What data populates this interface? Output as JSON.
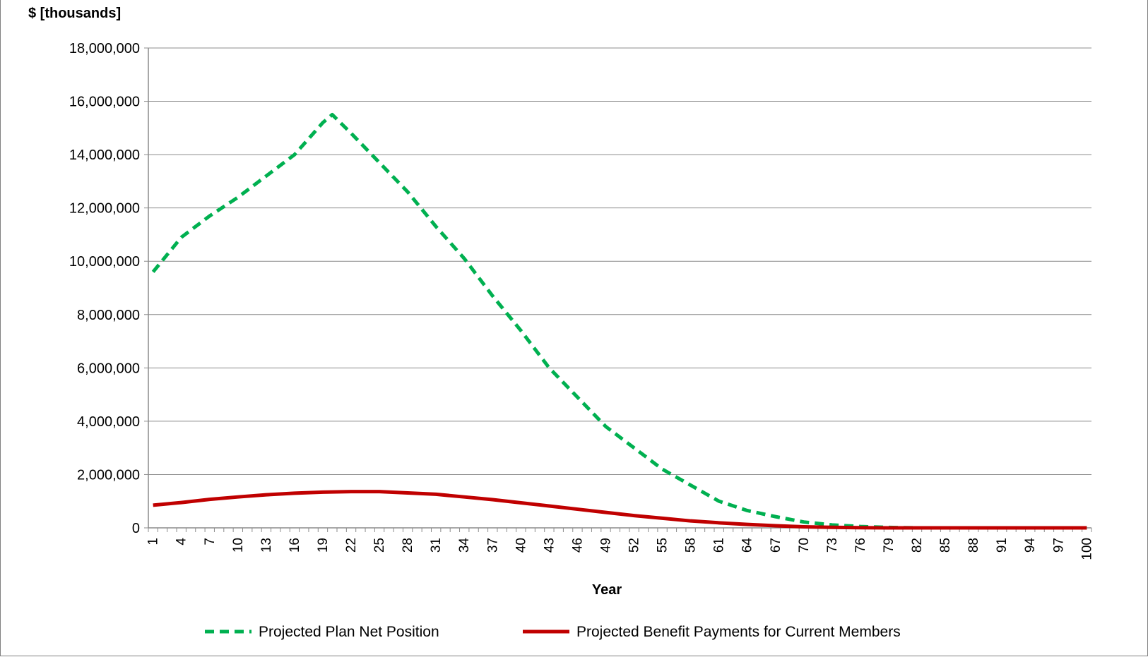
{
  "chart_data": {
    "type": "line",
    "title": "",
    "ylabel": "$ [thousands]",
    "xlabel": "Year",
    "ylim": [
      0,
      18000000
    ],
    "xlim": [
      1,
      100
    ],
    "yticks": [
      0,
      2000000,
      4000000,
      6000000,
      8000000,
      10000000,
      12000000,
      14000000,
      16000000,
      18000000
    ],
    "ytick_labels": [
      "0",
      "2,000,000",
      "4,000,000",
      "6,000,000",
      "8,000,000",
      "10,000,000",
      "12,000,000",
      "14,000,000",
      "16,000,000",
      "18,000,000"
    ],
    "xticks": [
      1,
      4,
      7,
      10,
      13,
      16,
      19,
      22,
      25,
      28,
      31,
      34,
      37,
      40,
      43,
      46,
      49,
      52,
      55,
      58,
      61,
      64,
      67,
      70,
      73,
      76,
      79,
      82,
      85,
      88,
      91,
      94,
      97,
      100
    ],
    "xtick_labels": [
      "1",
      "4",
      "7",
      "10",
      "13",
      "16",
      "19",
      "22",
      "25",
      "28",
      "31",
      "34",
      "37",
      "40",
      "43",
      "46",
      "49",
      "52",
      "55",
      "58",
      "61",
      "64",
      "67",
      "70",
      "73",
      "76",
      "79",
      "82",
      "85",
      "88",
      "91",
      "94",
      "97",
      "100"
    ],
    "grid": "horizontal",
    "legend": "bottom",
    "series": [
      {
        "name": "Projected Plan Net Position",
        "color": "#00b050",
        "style": "dashed",
        "points": [
          [
            1,
            9600000
          ],
          [
            4,
            10900000
          ],
          [
            7,
            11700000
          ],
          [
            10,
            12400000
          ],
          [
            13,
            13200000
          ],
          [
            16,
            14000000
          ],
          [
            19,
            15200000
          ],
          [
            20,
            15500000
          ],
          [
            22,
            14800000
          ],
          [
            25,
            13700000
          ],
          [
            28,
            12600000
          ],
          [
            31,
            11300000
          ],
          [
            34,
            10100000
          ],
          [
            37,
            8700000
          ],
          [
            40,
            7400000
          ],
          [
            43,
            6000000
          ],
          [
            46,
            4900000
          ],
          [
            49,
            3800000
          ],
          [
            52,
            3000000
          ],
          [
            55,
            2200000
          ],
          [
            58,
            1600000
          ],
          [
            61,
            1000000
          ],
          [
            64,
            650000
          ],
          [
            67,
            420000
          ],
          [
            70,
            220000
          ],
          [
            73,
            110000
          ],
          [
            76,
            50000
          ],
          [
            79,
            15000
          ],
          [
            82,
            0
          ],
          [
            100,
            0
          ]
        ]
      },
      {
        "name": "Projected Benefit Payments for Current Members",
        "color": "#c00000",
        "style": "solid",
        "points": [
          [
            1,
            850000
          ],
          [
            4,
            950000
          ],
          [
            7,
            1070000
          ],
          [
            10,
            1160000
          ],
          [
            13,
            1240000
          ],
          [
            16,
            1300000
          ],
          [
            19,
            1340000
          ],
          [
            22,
            1360000
          ],
          [
            25,
            1360000
          ],
          [
            28,
            1310000
          ],
          [
            31,
            1260000
          ],
          [
            34,
            1160000
          ],
          [
            37,
            1060000
          ],
          [
            40,
            940000
          ],
          [
            43,
            820000
          ],
          [
            46,
            700000
          ],
          [
            49,
            580000
          ],
          [
            52,
            460000
          ],
          [
            55,
            360000
          ],
          [
            58,
            260000
          ],
          [
            61,
            190000
          ],
          [
            64,
            130000
          ],
          [
            67,
            80000
          ],
          [
            70,
            40000
          ],
          [
            73,
            20000
          ],
          [
            76,
            8000
          ],
          [
            79,
            0
          ],
          [
            100,
            0
          ]
        ]
      }
    ]
  }
}
